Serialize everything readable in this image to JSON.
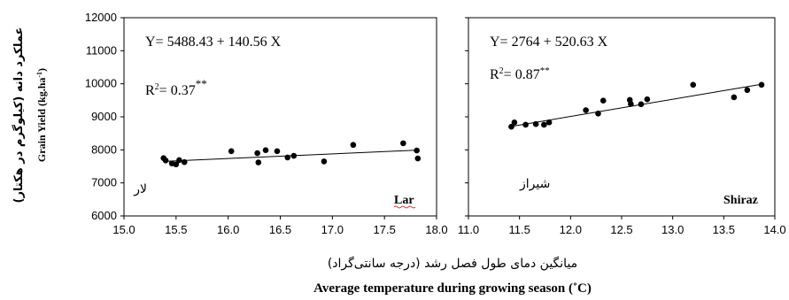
{
  "chart_data": [
    {
      "type": "scatter",
      "site_en": "Lar",
      "site_fa": "لار",
      "equation": "Y= 5488.43 + 140.56 X",
      "r2_prefix": "R",
      "r2_sup": "2",
      "r2_value": "= 0.37",
      "r2_sig": "**",
      "xlim": [
        15.0,
        18.0
      ],
      "ylim": [
        6000,
        12000
      ],
      "xticks": [
        "15.0",
        "15.5",
        "16.0",
        "16.5",
        "17.0",
        "17.5",
        "18.0"
      ],
      "yticks": [
        "6000",
        "7000",
        "8000",
        "9000",
        "10000",
        "11000",
        "12000"
      ],
      "trend": {
        "intercept": 5488.43,
        "slope": 140.56,
        "x_range": [
          15.38,
          17.82
        ]
      },
      "points": [
        {
          "x": 15.38,
          "y": 7750
        },
        {
          "x": 15.4,
          "y": 7680
        },
        {
          "x": 15.46,
          "y": 7590
        },
        {
          "x": 15.5,
          "y": 7560
        },
        {
          "x": 15.53,
          "y": 7690
        },
        {
          "x": 15.58,
          "y": 7630
        },
        {
          "x": 16.03,
          "y": 7960
        },
        {
          "x": 16.28,
          "y": 7900
        },
        {
          "x": 16.29,
          "y": 7620
        },
        {
          "x": 16.36,
          "y": 7990
        },
        {
          "x": 16.47,
          "y": 7960
        },
        {
          "x": 16.57,
          "y": 7770
        },
        {
          "x": 16.63,
          "y": 7820
        },
        {
          "x": 16.92,
          "y": 7650
        },
        {
          "x": 17.2,
          "y": 8150
        },
        {
          "x": 17.68,
          "y": 8200
        },
        {
          "x": 17.81,
          "y": 7980
        },
        {
          "x": 17.82,
          "y": 7740
        }
      ]
    },
    {
      "type": "scatter",
      "site_en": "Shiraz",
      "site_fa": "شیراز",
      "equation": "Y= 2764 + 520.63 X",
      "r2_prefix": "R",
      "r2_sup": "2",
      "r2_value": "= 0.87",
      "r2_sig": "**",
      "xlim": [
        11.0,
        14.0
      ],
      "ylim": [
        6000,
        12000
      ],
      "xticks": [
        "11.0",
        "11.5",
        "12.0",
        "12.5",
        "13.0",
        "13.5",
        "14.0"
      ],
      "yticks": [
        "6000",
        "7000",
        "8000",
        "9000",
        "10000",
        "11000",
        "12000"
      ],
      "trend": {
        "intercept": 2764,
        "slope": 520.63,
        "x_range": [
          11.42,
          13.88
        ]
      },
      "points": [
        {
          "x": 11.42,
          "y": 8700
        },
        {
          "x": 11.45,
          "y": 8830
        },
        {
          "x": 11.56,
          "y": 8760
        },
        {
          "x": 11.66,
          "y": 8780
        },
        {
          "x": 11.74,
          "y": 8760
        },
        {
          "x": 11.79,
          "y": 8830
        },
        {
          "x": 12.15,
          "y": 9200
        },
        {
          "x": 12.27,
          "y": 9100
        },
        {
          "x": 12.32,
          "y": 9490
        },
        {
          "x": 12.58,
          "y": 9510
        },
        {
          "x": 12.59,
          "y": 9390
        },
        {
          "x": 12.69,
          "y": 9380
        },
        {
          "x": 12.75,
          "y": 9530
        },
        {
          "x": 13.2,
          "y": 9970
        },
        {
          "x": 13.6,
          "y": 9590
        },
        {
          "x": 13.73,
          "y": 9810
        },
        {
          "x": 13.87,
          "y": 9970
        }
      ]
    }
  ],
  "ylabel_en": "Grain Yield (kg.ha",
  "ylabel_en_sup": "-1",
  "ylabel_en_close": ")",
  "ylabel_fa": "عملکرد دانه (کیلوگرم در هکتار)",
  "xlabel_fa": "میانگین دمای طول فصل رشد (درجه سانتی‌گراد)",
  "xlabel_en": "Average temperature during growing season (˚C)",
  "colors": {
    "marker": "#000000",
    "line": "#000000",
    "axis": "#000000",
    "spellcheck": "#cc0000"
  }
}
